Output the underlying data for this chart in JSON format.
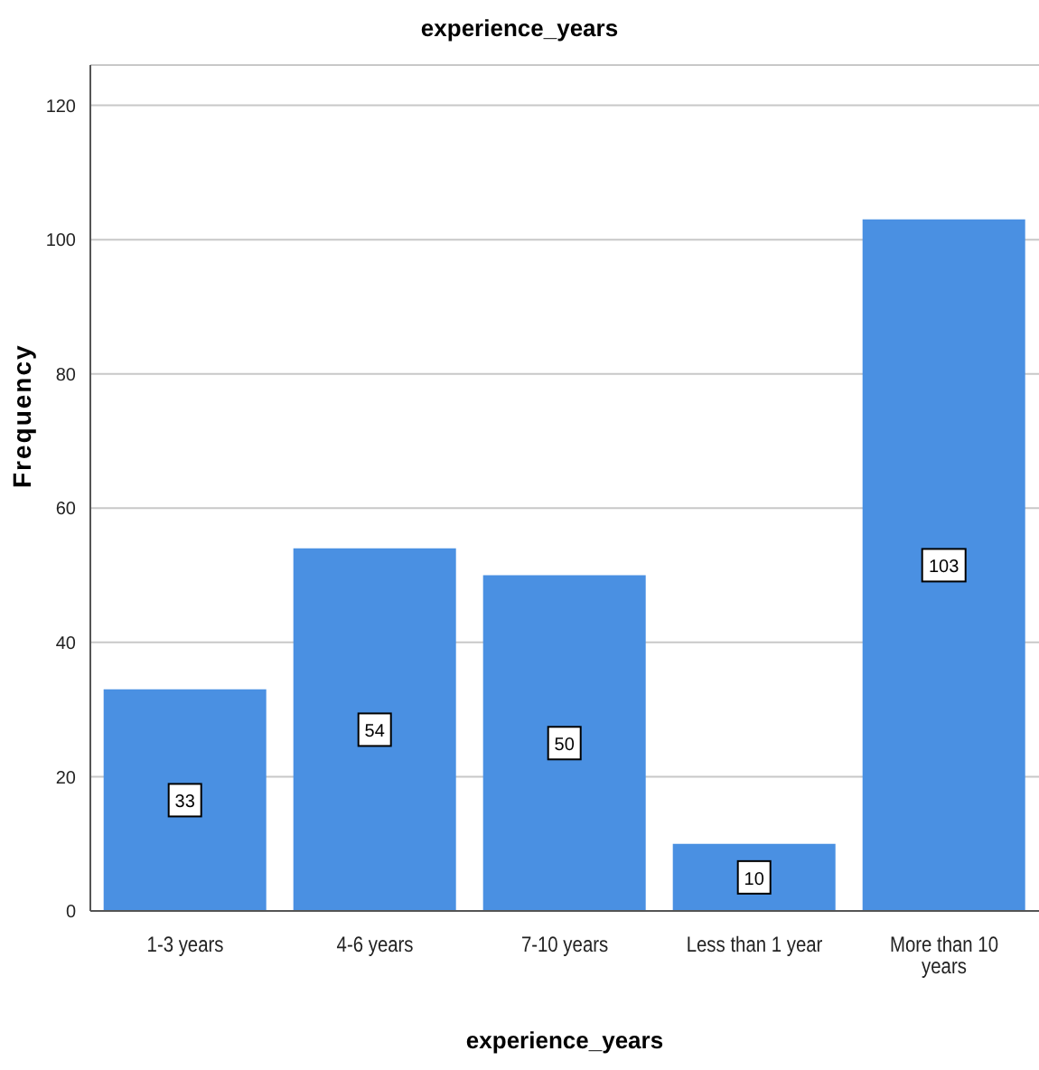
{
  "chart_data": {
    "type": "bar",
    "title": "experience_years",
    "xlabel": "experience_years",
    "ylabel": "Frequency",
    "categories": [
      "1-3 years",
      "4-6 years",
      "7-10 years",
      "Less than 1 year",
      "More than 10 years"
    ],
    "values": [
      33,
      54,
      50,
      10,
      103
    ],
    "color": "#4a90e2",
    "data_labels": true,
    "ylim": [
      0,
      126
    ],
    "yticks": [
      0,
      20,
      40,
      60,
      80,
      100,
      120
    ],
    "grid": "y"
  }
}
